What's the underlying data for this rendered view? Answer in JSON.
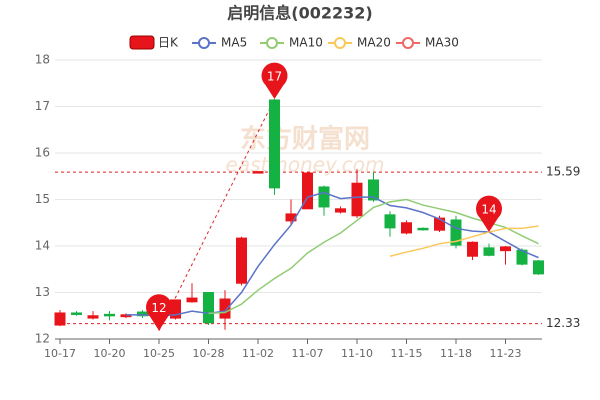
{
  "chart_data": {
    "type": "candlestick",
    "title": "启明信息(002232)",
    "watermark": "东方财富网",
    "watermark_sub": "eastmoney.com",
    "categories": [
      "10-17",
      null,
      null,
      "10-20",
      null,
      null,
      "10-25",
      null,
      null,
      "10-28",
      null,
      null,
      "11-02",
      null,
      null,
      "11-07",
      null,
      null,
      "11-10",
      null,
      null,
      "11-15",
      null,
      null,
      "11-18",
      null,
      null,
      "11-23",
      null,
      null
    ],
    "candles": {
      "name": "日K",
      "up_color": "#e8141b",
      "down_color": "#14b143",
      "open": [
        12.3,
        12.56,
        12.45,
        12.53,
        12.48,
        12.58,
        12.4,
        12.45,
        12.8,
        13.0,
        12.45,
        13.2,
        15.6,
        17.14,
        14.54,
        14.8,
        15.27,
        14.73,
        14.65,
        15.42,
        14.67,
        14.28,
        14.38,
        14.34,
        14.56,
        13.78,
        13.96,
        13.9,
        13.91,
        13.68
      ],
      "close": [
        12.56,
        12.53,
        12.5,
        12.52,
        12.52,
        12.5,
        12.6,
        12.84,
        12.88,
        12.35,
        12.86,
        14.17,
        15.6,
        15.25,
        14.69,
        15.57,
        14.84,
        14.8,
        15.35,
        14.99,
        14.39,
        14.5,
        14.35,
        14.6,
        14.02,
        14.08,
        13.8,
        13.98,
        13.61,
        13.4
      ],
      "high": [
        12.62,
        12.6,
        12.6,
        12.6,
        12.55,
        12.62,
        12.65,
        12.85,
        13.2,
        13.0,
        13.05,
        14.2,
        15.6,
        17.16,
        15.0,
        15.6,
        15.3,
        14.85,
        15.65,
        15.6,
        14.75,
        14.55,
        14.4,
        14.65,
        14.65,
        14.1,
        14.05,
        14.0,
        13.95,
        13.7
      ],
      "low": [
        12.28,
        12.5,
        12.42,
        12.4,
        12.45,
        12.45,
        12.18,
        12.42,
        12.78,
        12.3,
        12.2,
        13.15,
        15.6,
        15.1,
        14.45,
        14.8,
        14.65,
        14.7,
        14.6,
        14.95,
        14.2,
        14.25,
        14.33,
        14.3,
        13.95,
        13.7,
        13.78,
        13.6,
        13.58,
        13.38
      ]
    },
    "series": [
      {
        "name": "MA5",
        "color": "#5b73c9",
        "values": [
          null,
          null,
          null,
          null,
          12.52,
          12.52,
          12.5,
          12.52,
          12.6,
          12.55,
          12.6,
          13.0,
          13.56,
          14.03,
          14.45,
          15.05,
          15.15,
          15.02,
          15.05,
          15.05,
          14.87,
          14.82,
          14.72,
          14.58,
          14.38,
          14.32,
          14.3,
          14.1,
          13.9,
          13.75
        ]
      },
      {
        "name": "MA10",
        "color": "#91cc75",
        "values": [
          null,
          null,
          null,
          null,
          null,
          null,
          null,
          null,
          null,
          12.55,
          12.57,
          12.75,
          13.05,
          13.3,
          13.52,
          13.85,
          14.08,
          14.28,
          14.55,
          14.83,
          14.95,
          15.0,
          14.88,
          14.8,
          14.72,
          14.6,
          14.5,
          14.4,
          14.22,
          14.05
        ]
      },
      {
        "name": "MA20",
        "color": "#fac858",
        "values": [
          null,
          null,
          null,
          null,
          null,
          null,
          null,
          null,
          null,
          null,
          null,
          null,
          null,
          null,
          null,
          null,
          null,
          null,
          null,
          null,
          13.78,
          13.87,
          13.95,
          14.05,
          14.1,
          14.2,
          14.3,
          14.38,
          14.38,
          14.43
        ]
      },
      {
        "name": "MA30",
        "color": "#ee6666",
        "values": [
          null,
          null,
          null,
          null,
          null,
          null,
          null,
          null,
          null,
          null,
          null,
          null,
          null,
          null,
          null,
          null,
          null,
          null,
          null,
          null,
          null,
          null,
          null,
          null,
          null,
          null,
          null,
          null,
          null,
          null
        ]
      }
    ],
    "hlines": [
      15.59,
      12.33
    ],
    "markers": [
      {
        "index": 6,
        "value": 12.18,
        "label": "12"
      },
      {
        "index": 13,
        "value": 17.16,
        "label": "17"
      },
      {
        "index": 26,
        "value": 14.3,
        "label": "14"
      }
    ],
    "ylim": [
      12,
      18
    ],
    "yticks": [
      12,
      13,
      14,
      15,
      16,
      17,
      18
    ],
    "grid": true
  }
}
